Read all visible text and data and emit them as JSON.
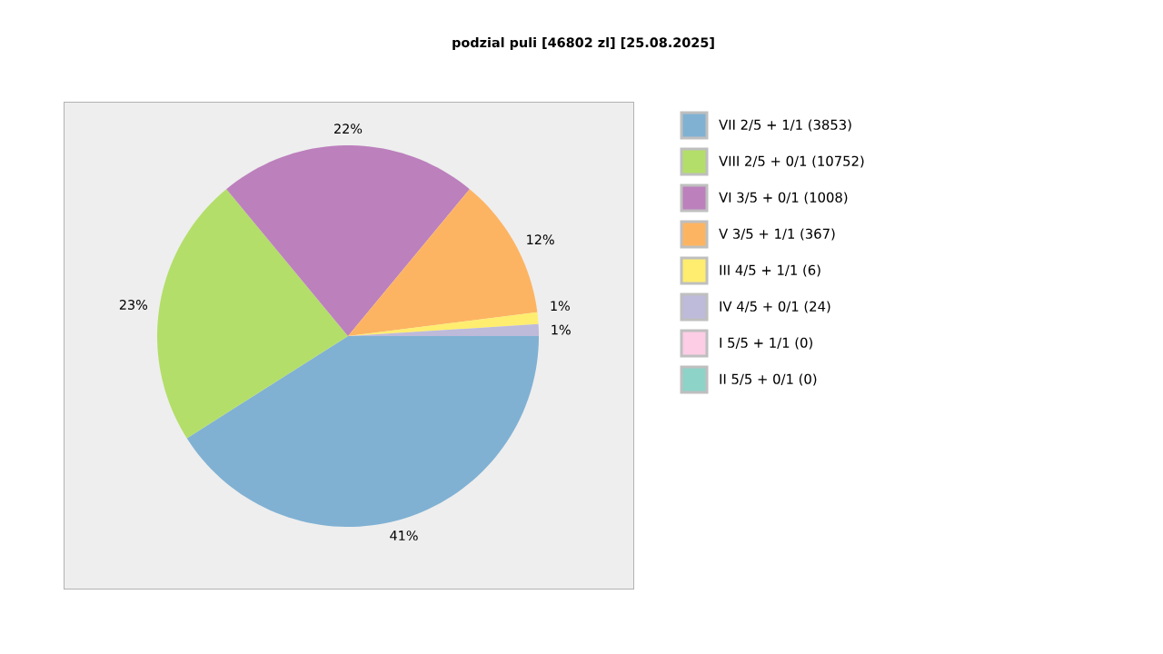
{
  "chart_data": {
    "type": "pie",
    "title": "podzial puli [46802 zl] [25.08.2025]",
    "categories": [
      "VII 2/5 + 1/1 (3853)",
      "VIII 2/5 + 0/1 (10752)",
      "VI 3/5 + 0/1 (1008)",
      "V 3/5 + 1/1 (367)",
      "III 4/5 + 1/1 (6)",
      "IV 4/5 + 0/1 (24)",
      "I 5/5 + 1/1 (0)",
      "II 5/5 + 0/1 (0)"
    ],
    "values": [
      41,
      23,
      22,
      12,
      1,
      1,
      0,
      0
    ],
    "value_labels": [
      "41%",
      "23%",
      "22%",
      "12%",
      "1%",
      "1%",
      null,
      null
    ],
    "colors": [
      "#80b1d3",
      "#b3de69",
      "#bc80bd",
      "#fdb462",
      "#ffed6f",
      "#bebada",
      "#fccde5",
      "#8dd3c7"
    ],
    "legend": "right"
  }
}
